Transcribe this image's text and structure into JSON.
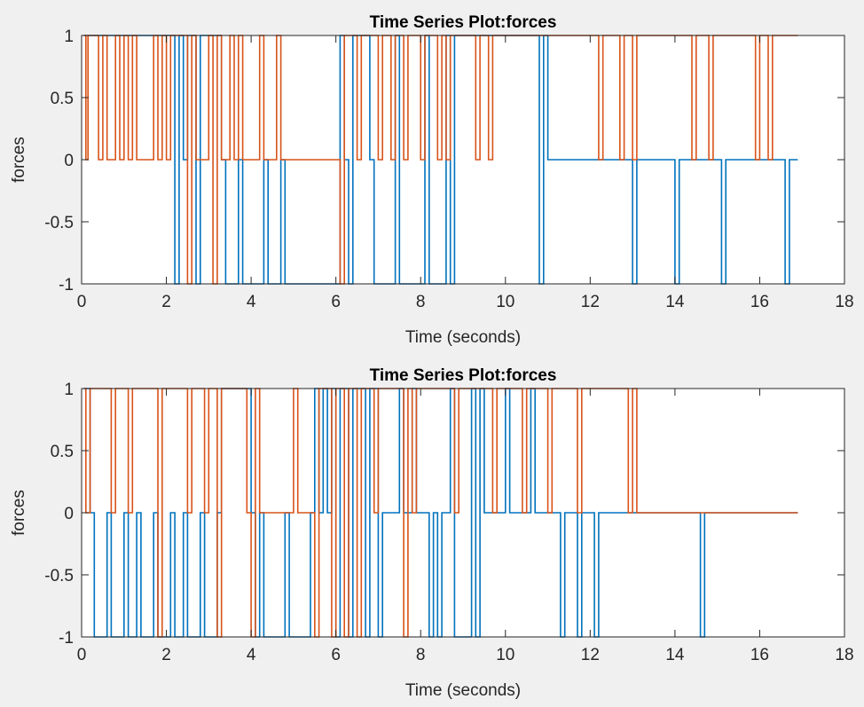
{
  "figure": {
    "background": "#f0f0f0"
  },
  "chart_data": [
    {
      "type": "line",
      "step": true,
      "title": "Time Series Plot:forces",
      "xlabel": "Time (seconds)",
      "ylabel": "forces",
      "xlim": [
        0,
        18
      ],
      "ylim": [
        -1,
        1
      ],
      "xticks": [
        0,
        2,
        4,
        6,
        8,
        10,
        12,
        14,
        16,
        18
      ],
      "yticks": [
        -1,
        -0.5,
        0,
        0.5,
        1
      ],
      "ytick_labels": [
        "-1",
        "-0.5",
        "0",
        "0.5",
        "1"
      ],
      "grid": false,
      "series": [
        {
          "color": "#0072BD",
          "x": [
            0.05,
            2.2,
            2.3,
            2.4,
            2.5,
            2.7,
            2.8,
            3.3,
            3.4,
            3.7,
            3.8,
            4.3,
            4.4,
            4.7,
            4.8,
            6.1,
            6.2,
            6.3,
            6.4,
            6.8,
            6.9,
            7.4,
            7.5,
            8.1,
            8.2,
            8.6,
            8.7,
            8.8,
            10.8,
            10.9,
            11.0,
            13.0,
            13.1,
            14.0,
            14.1,
            15.1,
            15.2,
            16.6,
            16.7,
            16.9
          ],
          "y": [
            1,
            -1,
            1,
            0,
            1,
            -1,
            1,
            0,
            -1,
            0,
            -1,
            0,
            -1,
            0,
            -1,
            1,
            0,
            -1,
            1,
            0,
            -1,
            1,
            -1,
            1,
            -1,
            1,
            -1,
            1,
            -1,
            1,
            0,
            -1,
            0,
            -1,
            0,
            -1,
            0,
            -1,
            0,
            0
          ]
        },
        {
          "color": "#D95319",
          "x": [
            0.05,
            0.1,
            0.15,
            0.4,
            0.5,
            0.6,
            0.8,
            0.9,
            1.0,
            1.1,
            1.2,
            1.3,
            1.7,
            1.8,
            1.9,
            2.0,
            2.1,
            2.5,
            2.6,
            2.7,
            3.0,
            3.1,
            3.2,
            3.3,
            3.5,
            3.6,
            3.7,
            3.8,
            4.2,
            4.3,
            4.6,
            4.7,
            6.1,
            6.2,
            6.5,
            6.6,
            7.0,
            7.1,
            7.3,
            7.4,
            7.6,
            7.7,
            8.0,
            8.1,
            8.4,
            8.5,
            8.6,
            8.7,
            9.3,
            9.4,
            9.6,
            9.7,
            12.2,
            12.3,
            12.7,
            12.8,
            13.0,
            13.1,
            14.4,
            14.5,
            14.8,
            14.9,
            15.9,
            16.0,
            16.2,
            16.3,
            16.9
          ],
          "y": [
            1,
            0,
            1,
            0,
            1,
            0,
            1,
            0,
            1,
            0,
            1,
            0,
            1,
            0,
            1,
            0,
            1,
            -1,
            1,
            0,
            1,
            -1,
            1,
            0,
            1,
            0,
            1,
            0,
            1,
            0,
            1,
            0,
            -1,
            1,
            0,
            1,
            0,
            1,
            0,
            1,
            0,
            1,
            0,
            1,
            0,
            1,
            0,
            1,
            0,
            1,
            0,
            1,
            0,
            1,
            0,
            1,
            0,
            1,
            0,
            1,
            0,
            1,
            0,
            1,
            0,
            1,
            1
          ]
        }
      ]
    },
    {
      "type": "line",
      "step": true,
      "title": "Time Series Plot:forces",
      "xlabel": "Time (seconds)",
      "ylabel": "forces",
      "xlim": [
        0,
        18
      ],
      "ylim": [
        -1,
        1
      ],
      "xticks": [
        0,
        2,
        4,
        6,
        8,
        10,
        12,
        14,
        16,
        18
      ],
      "yticks": [
        -1,
        -0.5,
        0,
        0.5,
        1
      ],
      "ytick_labels": [
        "-1",
        "-0.5",
        "0",
        "0.5",
        "1"
      ],
      "grid": false,
      "series": [
        {
          "color": "#0072BD",
          "x": [
            0.05,
            0.2,
            0.3,
            0.6,
            0.7,
            1.0,
            1.1,
            1.3,
            1.4,
            1.7,
            1.8,
            2.1,
            2.2,
            2.4,
            2.5,
            2.8,
            2.9,
            3.2,
            3.3,
            4.0,
            4.1,
            4.2,
            4.3,
            4.8,
            4.9,
            5.4,
            5.5,
            5.6,
            5.7,
            5.8,
            5.9,
            6.0,
            6.1,
            6.3,
            6.4,
            6.7,
            6.8,
            7.0,
            7.1,
            7.5,
            7.6,
            7.8,
            7.9,
            8.2,
            8.3,
            8.4,
            8.5,
            8.7,
            8.8,
            9.2,
            9.3,
            9.4,
            9.5,
            10.0,
            10.1,
            10.6,
            10.7,
            11.3,
            11.4,
            11.7,
            11.8,
            12.1,
            12.2,
            14.6,
            14.7,
            16.9
          ],
          "y": [
            1,
            0,
            -1,
            0,
            -1,
            0,
            -1,
            0,
            -1,
            0,
            -1,
            0,
            -1,
            0,
            -1,
            0,
            -1,
            0,
            1,
            0,
            -1,
            0,
            -1,
            0,
            -1,
            0,
            1,
            0,
            1,
            0,
            1,
            -1,
            1,
            -1,
            1,
            -1,
            1,
            -1,
            0,
            1,
            0,
            1,
            0,
            -1,
            0,
            -1,
            0,
            1,
            -1,
            1,
            -1,
            1,
            0,
            1,
            0,
            1,
            0,
            -1,
            0,
            -1,
            0,
            -1,
            0,
            -1,
            0,
            0
          ]
        },
        {
          "color": "#D95319",
          "x": [
            0.05,
            0.1,
            0.2,
            0.7,
            0.8,
            1.1,
            1.2,
            1.8,
            1.9,
            2.5,
            2.6,
            2.9,
            3.0,
            3.2,
            3.3,
            3.9,
            4.0,
            4.1,
            4.2,
            5.0,
            5.1,
            5.5,
            5.6,
            5.9,
            6.0,
            6.2,
            6.3,
            6.5,
            6.6,
            6.9,
            7.0,
            7.6,
            7.7,
            7.8,
            7.9,
            8.8,
            8.9,
            9.7,
            9.8,
            10.4,
            10.5,
            11.0,
            11.1,
            11.7,
            11.8,
            12.9,
            13.0,
            13.1,
            16.9
          ],
          "y": [
            1,
            0,
            1,
            0,
            1,
            0,
            1,
            -1,
            1,
            0,
            1,
            0,
            1,
            -1,
            1,
            0,
            -1,
            1,
            0,
            1,
            0,
            -1,
            1,
            -1,
            1,
            -1,
            1,
            -1,
            1,
            0,
            1,
            -1,
            1,
            0,
            1,
            0,
            1,
            0,
            1,
            0,
            1,
            0,
            1,
            0,
            1,
            0,
            1,
            0,
            0
          ]
        }
      ]
    }
  ]
}
